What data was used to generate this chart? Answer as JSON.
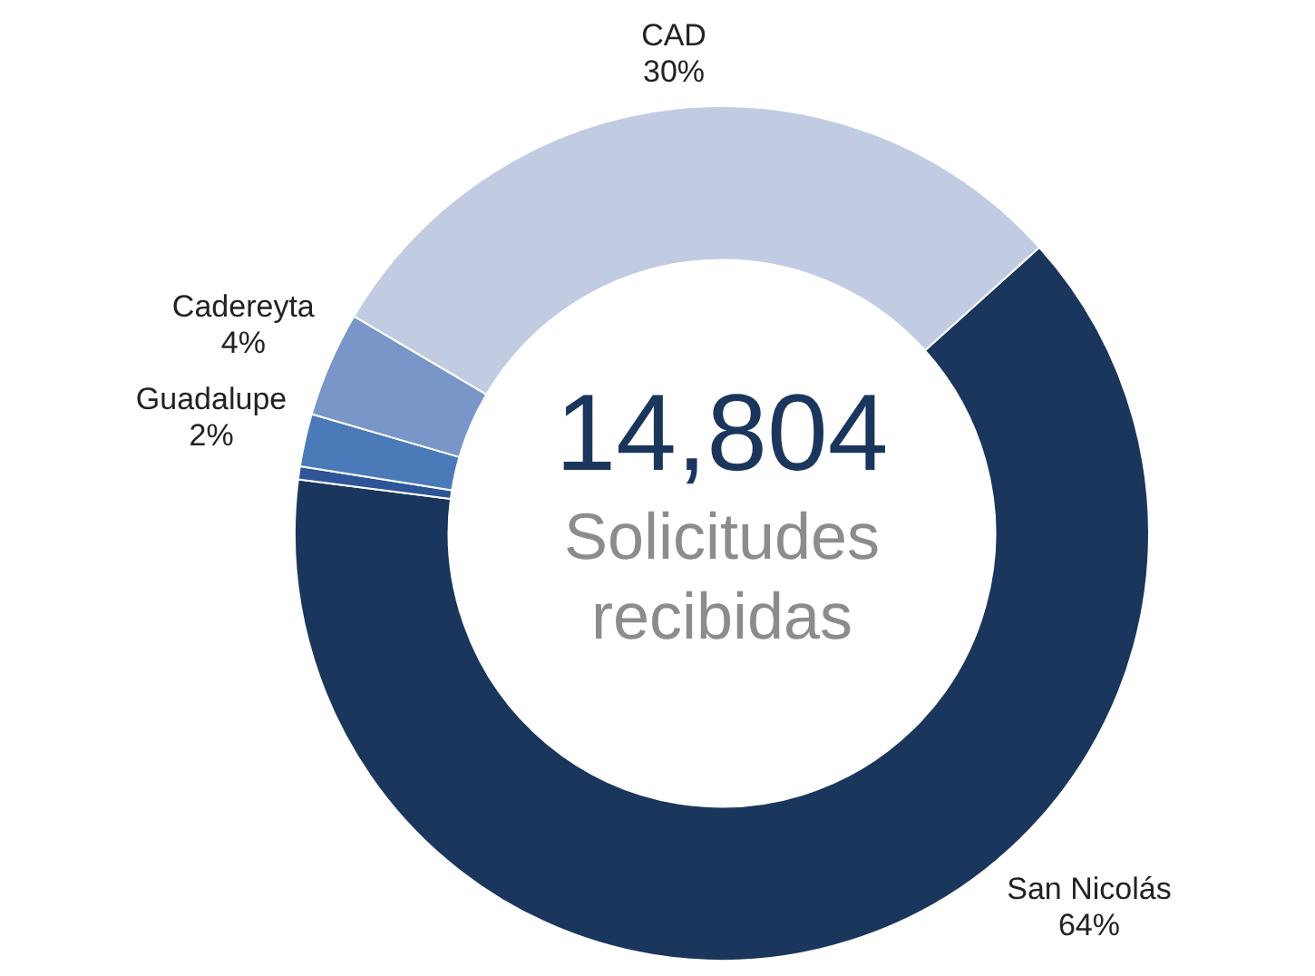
{
  "chart_data": {
    "type": "donut",
    "categories": [
      "San Nicolás",
      null,
      "Guadalupe",
      "Cadereyta",
      "CAD"
    ],
    "values": [
      64,
      0.5,
      2,
      4,
      30
    ],
    "colors": [
      "#1b365d",
      "#2e5597",
      "#4a7ab8",
      "#7896c8",
      "#c1cce2"
    ],
    "value_labels": [
      "64%",
      null,
      "2%",
      "4%",
      "30%"
    ],
    "legend": false,
    "annotations": [
      "14,804",
      "Solicitudes recibidas"
    ]
  }
}
